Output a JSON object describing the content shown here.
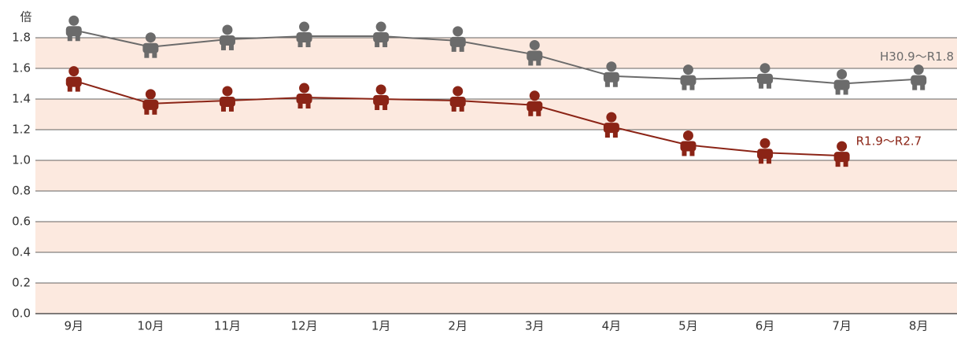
{
  "chart_data": {
    "type": "line",
    "y_label": "倍",
    "categories": [
      "9月",
      "10月",
      "11月",
      "12月",
      "1月",
      "2月",
      "3月",
      "4月",
      "5月",
      "6月",
      "7月",
      "8月"
    ],
    "series": [
      {
        "name": "H30.9～R1.8",
        "color": "#6b6b6b",
        "values": [
          1.85,
          1.74,
          1.79,
          1.81,
          1.81,
          1.78,
          1.69,
          1.55,
          1.53,
          1.54,
          1.5,
          1.53
        ]
      },
      {
        "name": "R1.9～R2.7",
        "color": "#8b2416",
        "values": [
          1.52,
          1.37,
          1.39,
          1.41,
          1.4,
          1.39,
          1.36,
          1.22,
          1.1,
          1.05,
          1.03,
          null
        ]
      }
    ],
    "ylim": [
      0,
      1.9
    ],
    "yticks": [
      {
        "value": 0,
        "label": "0.0"
      },
      0.2,
      0.4,
      0.6,
      0.8,
      {
        "value": 1,
        "label": "1.0"
      },
      1.2,
      1.4,
      1.6,
      1.8
    ],
    "band_color": "#fce9df",
    "grid": true
  }
}
